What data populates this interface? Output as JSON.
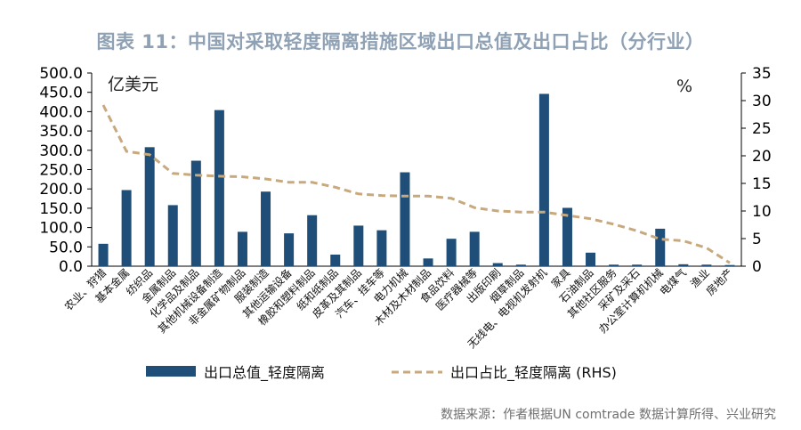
{
  "title": "图表 11：中国对采取轻度隔离措施区域出口总值及出口占比（分行业）",
  "source": "数据来源：作者根据UN comtrade 数据计算所得、兴业研究",
  "colors": {
    "bar": "#1f4e79",
    "line": "#c8a97e",
    "title": "#8fa1b5",
    "axis": "#000000"
  },
  "chart_data": {
    "type": "bar",
    "title": "图表 11：中国对采取轻度隔离措施区域出口总值及出口占比（分行业）",
    "left_axis": {
      "unit": "亿美元",
      "range": [
        0,
        500
      ],
      "ticks": [
        "0.0",
        "50.0",
        "100.0",
        "150.0",
        "200.0",
        "250.0",
        "300.0",
        "350.0",
        "400.0",
        "450.0",
        "500.0"
      ]
    },
    "right_axis": {
      "unit": "%",
      "range": [
        0,
        35
      ],
      "ticks": [
        "0",
        "5",
        "10",
        "15",
        "20",
        "25",
        "30",
        "35"
      ]
    },
    "categories": [
      "农业、狩猎",
      "基本金属",
      "纺织品",
      "金属制品",
      "化学品及制品",
      "其他机械设备制造",
      "非金属矿物制品",
      "服装制造",
      "其他运输设备",
      "橡胶和塑料制品",
      "纸和纸制品",
      "皮革及其制品",
      "汽车、挂车等",
      "电力机械",
      "木材及木材制品",
      "食品饮料",
      "医疗器械等",
      "出版印刷",
      "烟草制品",
      "无线电、电视机发射机",
      "家具",
      "石油制品",
      "其他社区服务",
      "采矿及采石",
      "办公室计算机机械",
      "电煤气",
      "渔业",
      "房地产"
    ],
    "series": [
      {
        "name": "出口总值_轻度隔离",
        "type": "bar",
        "axis": "left",
        "values": [
          58,
          197,
          308,
          158,
          273,
          404,
          89,
          193,
          85,
          132,
          30,
          105,
          93,
          243,
          20,
          71,
          89,
          8,
          4,
          446,
          151,
          35,
          4,
          4,
          97,
          5,
          4,
          3
        ]
      },
      {
        "name": "出口占比_轻度隔离 (RHS)",
        "type": "line",
        "axis": "right",
        "style": "dashed",
        "values": [
          29.2,
          20.8,
          20.2,
          16.8,
          16.5,
          16.3,
          16.2,
          15.8,
          15.2,
          15.2,
          14.3,
          13.1,
          12.8,
          12.7,
          12.7,
          12.3,
          10.6,
          10.0,
          9.8,
          9.8,
          9.2,
          8.6,
          7.6,
          6.4,
          4.9,
          4.6,
          3.3,
          0.6
        ]
      }
    ],
    "legend": {
      "position": "bottom",
      "items": [
        "出口总值_轻度隔离",
        "出口占比_轻度隔离 (RHS)"
      ]
    },
    "grid": false
  }
}
